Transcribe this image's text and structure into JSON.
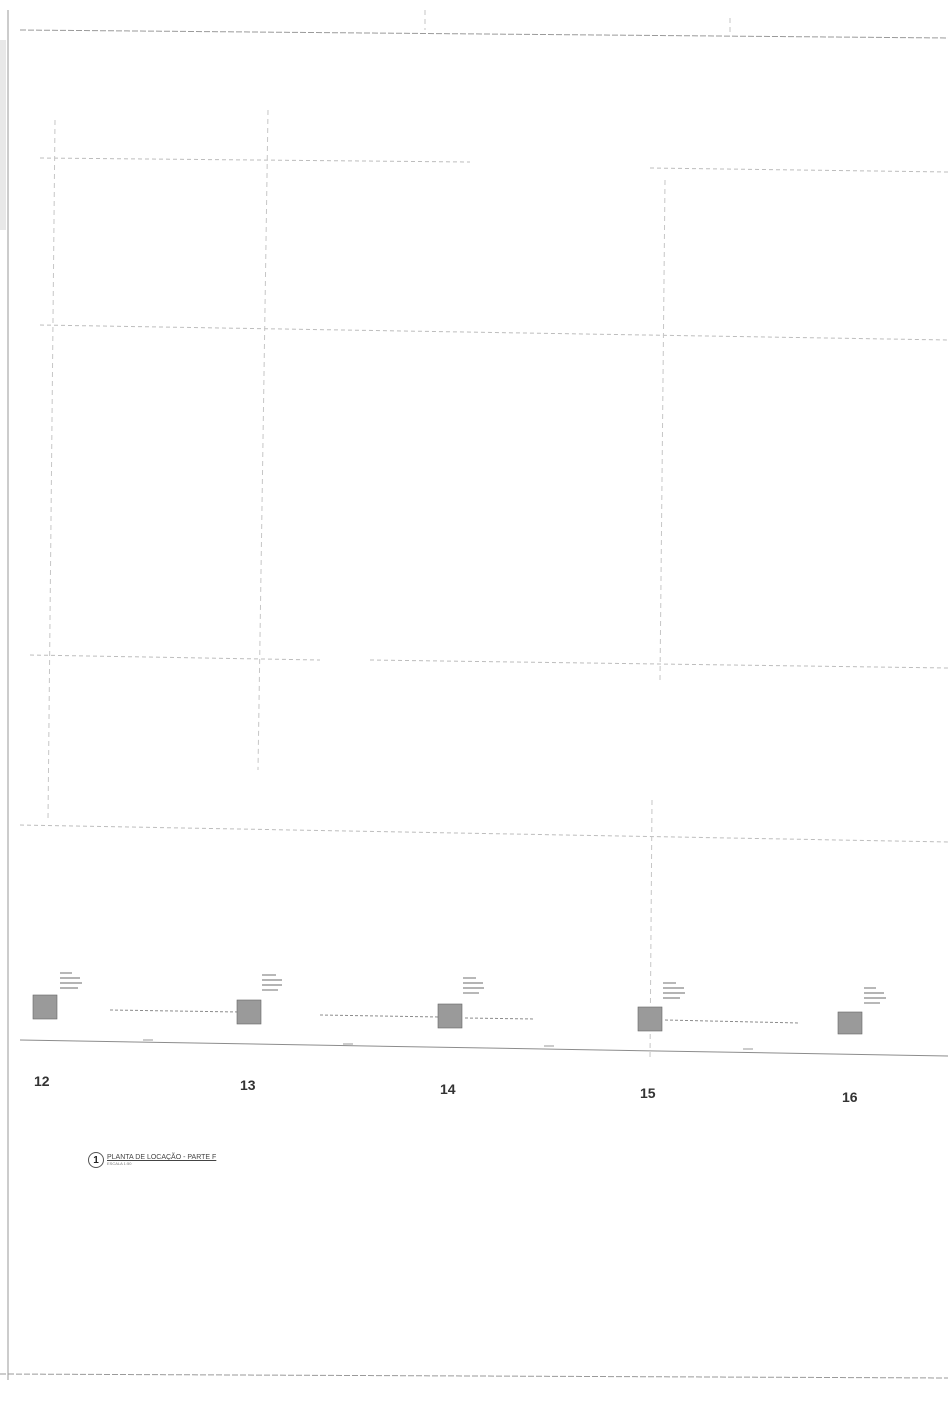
{
  "drawing": {
    "title_number": "1",
    "title": "PLANTA DE LOCAÇÃO - PARTE F",
    "scale_note": "ESCALA 1:50",
    "axis_labels": [
      "12",
      "13",
      "14",
      "15",
      "16"
    ]
  },
  "colors": {
    "line": "#8c8c8c",
    "faint_line": "#c8c8c8",
    "pile_fill": "#9a9a9a",
    "text": "#333333"
  }
}
